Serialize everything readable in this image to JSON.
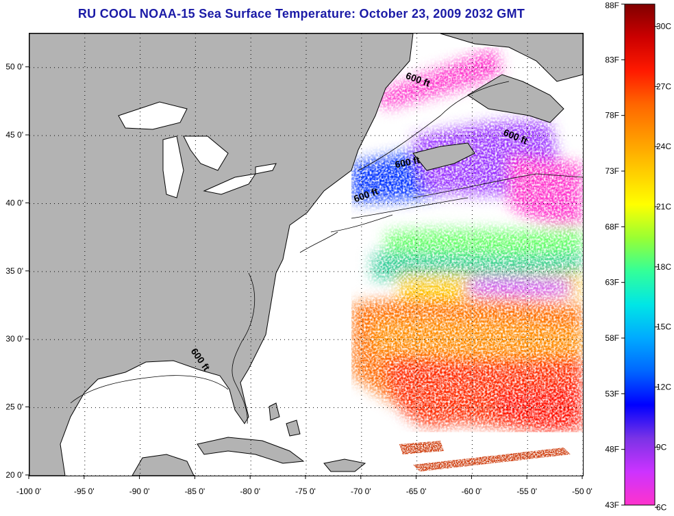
{
  "title": "RU COOL  NOAA-15  Sea Surface Temperature:  October 23, 2009 2032 GMT",
  "map": {
    "lon_range": [
      -100,
      -50
    ],
    "lat_range": [
      20,
      52.5
    ],
    "lon_ticks": [
      {
        "value": -100,
        "label": "-100 0'"
      },
      {
        "value": -95,
        "label": "-95 0'"
      },
      {
        "value": -90,
        "label": "-90 0'"
      },
      {
        "value": -85,
        "label": "-85 0'"
      },
      {
        "value": -80,
        "label": "-80 0'"
      },
      {
        "value": -75,
        "label": "-75 0'"
      },
      {
        "value": -70,
        "label": "-70 0'"
      },
      {
        "value": -65,
        "label": "-65 0'"
      },
      {
        "value": -60,
        "label": "-60 0'"
      },
      {
        "value": -55,
        "label": "-55 0'"
      },
      {
        "value": -50,
        "label": "-50 0'"
      }
    ],
    "lat_ticks": [
      {
        "value": 20,
        "label": "20 0'"
      },
      {
        "value": 25,
        "label": "25 0'"
      },
      {
        "value": 30,
        "label": "30 0'"
      },
      {
        "value": 35,
        "label": "35 0'"
      },
      {
        "value": 40,
        "label": "40 0'"
      },
      {
        "value": 45,
        "label": "45 0'"
      },
      {
        "value": 50,
        "label": "50 0'"
      }
    ],
    "contour_labels": [
      {
        "text": "600 ft",
        "lon": -65.0,
        "lat": 48.9,
        "angle": 20
      },
      {
        "text": "600 ft",
        "lon": -56.2,
        "lat": 44.7,
        "angle": 22
      },
      {
        "text": "600 ft",
        "lon": -65.8,
        "lat": 42.8,
        "angle": -12
      },
      {
        "text": "600 ft",
        "lon": -69.5,
        "lat": 40.4,
        "angle": -20
      },
      {
        "text": "600 ft",
        "lon": -84.8,
        "lat": 28.4,
        "angle": 55
      }
    ],
    "colors": {
      "land": "#b3b3b3",
      "water": "#ffffff",
      "coast": "#000000",
      "grid": "#000000"
    }
  },
  "colorbar": {
    "fahrenheit_ticks": [
      {
        "value": 88,
        "label": "88F"
      },
      {
        "value": 83,
        "label": "83F"
      },
      {
        "value": 78,
        "label": "78F"
      },
      {
        "value": 73,
        "label": "73F"
      },
      {
        "value": 68,
        "label": "68F"
      },
      {
        "value": 63,
        "label": "63F"
      },
      {
        "value": 58,
        "label": "58F"
      },
      {
        "value": 53,
        "label": "53F"
      },
      {
        "value": 48,
        "label": "48F"
      },
      {
        "value": 43,
        "label": "43F"
      }
    ],
    "celsius_ticks": [
      {
        "value": 30,
        "label": "30C"
      },
      {
        "value": 27,
        "label": "27C"
      },
      {
        "value": 24,
        "label": "24C"
      },
      {
        "value": 21,
        "label": "21C"
      },
      {
        "value": 18,
        "label": "18C"
      },
      {
        "value": 15,
        "label": "15C"
      },
      {
        "value": 12,
        "label": "12C"
      },
      {
        "value": 9,
        "label": "9C"
      },
      {
        "value": 6,
        "label": "6C"
      }
    ],
    "stops": [
      "#ff33cc",
      "#cc33ff",
      "#7a33e6",
      "#0000ff",
      "#0066ff",
      "#00aaff",
      "#00e6e6",
      "#33ff99",
      "#99ff33",
      "#ffff00",
      "#ffcc00",
      "#ff9900",
      "#ff6600",
      "#ff1a00",
      "#cc0000",
      "#800000"
    ]
  }
}
